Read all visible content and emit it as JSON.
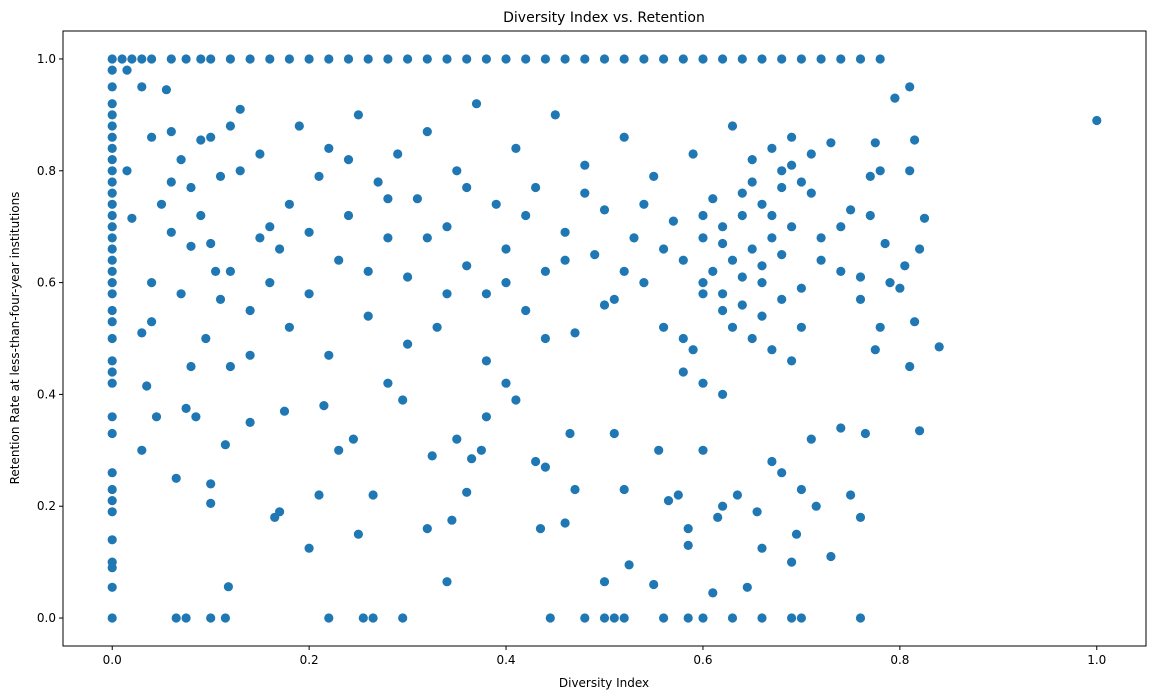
{
  "chart_data": {
    "type": "scatter",
    "title": "Diversity Index vs. Retention",
    "xlabel": "Diversity Index",
    "ylabel": "Retention Rate at less-than-four-year institutions",
    "xlim": [
      -0.05,
      1.05
    ],
    "ylim": [
      -0.05,
      1.05
    ],
    "xticks": [
      0.0,
      0.2,
      0.4,
      0.6,
      0.8,
      1.0
    ],
    "yticks": [
      0.0,
      0.2,
      0.4,
      0.6,
      0.8,
      1.0
    ],
    "xtick_labels": [
      "0.0",
      "0.2",
      "0.4",
      "0.6",
      "0.8",
      "1.0"
    ],
    "ytick_labels": [
      "0.0",
      "0.2",
      "0.4",
      "0.6",
      "0.8",
      "1.0"
    ],
    "grid": false,
    "marker_color": "#1f77b4",
    "points": [
      [
        0.0,
        1.0
      ],
      [
        0.0,
        0.98
      ],
      [
        0.0,
        0.95
      ],
      [
        0.0,
        0.92
      ],
      [
        0.0,
        0.9
      ],
      [
        0.0,
        0.88
      ],
      [
        0.0,
        0.86
      ],
      [
        0.0,
        0.84
      ],
      [
        0.0,
        0.82
      ],
      [
        0.0,
        0.8
      ],
      [
        0.0,
        0.78
      ],
      [
        0.0,
        0.76
      ],
      [
        0.0,
        0.74
      ],
      [
        0.0,
        0.72
      ],
      [
        0.0,
        0.7
      ],
      [
        0.0,
        0.68
      ],
      [
        0.0,
        0.66
      ],
      [
        0.0,
        0.64
      ],
      [
        0.0,
        0.62
      ],
      [
        0.0,
        0.6
      ],
      [
        0.0,
        0.58
      ],
      [
        0.0,
        0.55
      ],
      [
        0.0,
        0.53
      ],
      [
        0.0,
        0.5
      ],
      [
        0.0,
        0.46
      ],
      [
        0.0,
        0.44
      ],
      [
        0.0,
        0.42
      ],
      [
        0.0,
        0.36
      ],
      [
        0.0,
        0.33
      ],
      [
        0.0,
        0.26
      ],
      [
        0.0,
        0.23
      ],
      [
        0.0,
        0.21
      ],
      [
        0.0,
        0.19
      ],
      [
        0.0,
        0.14
      ],
      [
        0.0,
        0.1
      ],
      [
        0.0,
        0.09
      ],
      [
        0.0,
        0.055
      ],
      [
        0.0,
        0.0
      ],
      [
        0.01,
        1.0
      ],
      [
        0.02,
        1.0
      ],
      [
        0.03,
        1.0
      ],
      [
        0.04,
        1.0
      ],
      [
        0.06,
        1.0
      ],
      [
        0.075,
        1.0
      ],
      [
        0.09,
        1.0
      ],
      [
        0.1,
        1.0
      ],
      [
        0.12,
        1.0
      ],
      [
        0.14,
        1.0
      ],
      [
        0.16,
        1.0
      ],
      [
        0.18,
        1.0
      ],
      [
        0.2,
        1.0
      ],
      [
        0.22,
        1.0
      ],
      [
        0.24,
        1.0
      ],
      [
        0.26,
        1.0
      ],
      [
        0.28,
        1.0
      ],
      [
        0.3,
        1.0
      ],
      [
        0.32,
        1.0
      ],
      [
        0.34,
        1.0
      ],
      [
        0.36,
        1.0
      ],
      [
        0.38,
        1.0
      ],
      [
        0.4,
        1.0
      ],
      [
        0.42,
        1.0
      ],
      [
        0.44,
        1.0
      ],
      [
        0.46,
        1.0
      ],
      [
        0.48,
        1.0
      ],
      [
        0.5,
        1.0
      ],
      [
        0.52,
        1.0
      ],
      [
        0.54,
        1.0
      ],
      [
        0.56,
        1.0
      ],
      [
        0.58,
        1.0
      ],
      [
        0.6,
        1.0
      ],
      [
        0.62,
        1.0
      ],
      [
        0.64,
        1.0
      ],
      [
        0.66,
        1.0
      ],
      [
        0.68,
        1.0
      ],
      [
        0.7,
        1.0
      ],
      [
        0.72,
        1.0
      ],
      [
        0.74,
        1.0
      ],
      [
        0.76,
        1.0
      ],
      [
        0.78,
        1.0
      ],
      [
        0.065,
        0.0
      ],
      [
        0.075,
        0.0
      ],
      [
        0.1,
        0.0
      ],
      [
        0.115,
        0.0
      ],
      [
        0.22,
        0.0
      ],
      [
        0.255,
        0.0
      ],
      [
        0.265,
        0.0
      ],
      [
        0.295,
        0.0
      ],
      [
        0.445,
        0.0
      ],
      [
        0.48,
        0.0
      ],
      [
        0.5,
        0.0
      ],
      [
        0.51,
        0.0
      ],
      [
        0.52,
        0.0
      ],
      [
        0.56,
        0.0
      ],
      [
        0.585,
        0.0
      ],
      [
        0.6,
        0.0
      ],
      [
        0.63,
        0.0
      ],
      [
        0.66,
        0.0
      ],
      [
        0.69,
        0.0
      ],
      [
        0.7,
        0.0
      ],
      [
        0.76,
        0.0
      ],
      [
        1.0,
        0.89
      ],
      [
        0.84,
        0.485
      ],
      [
        0.82,
        0.335
      ],
      [
        0.825,
        0.715
      ],
      [
        0.815,
        0.855
      ],
      [
        0.81,
        0.95
      ],
      [
        0.81,
        0.8
      ],
      [
        0.805,
        0.63
      ],
      [
        0.815,
        0.53
      ],
      [
        0.81,
        0.45
      ],
      [
        0.8,
        0.59
      ],
      [
        0.795,
        0.93
      ],
      [
        0.82,
        0.66
      ],
      [
        0.015,
        0.98
      ],
      [
        0.015,
        0.8
      ],
      [
        0.02,
        0.715
      ],
      [
        0.03,
        0.51
      ],
      [
        0.035,
        0.415
      ],
      [
        0.03,
        0.3
      ],
      [
        0.04,
        0.6
      ],
      [
        0.045,
        0.36
      ],
      [
        0.055,
        0.945
      ],
      [
        0.06,
        0.87
      ],
      [
        0.065,
        0.25
      ],
      [
        0.07,
        0.58
      ],
      [
        0.075,
        0.375
      ],
      [
        0.08,
        0.665
      ],
      [
        0.085,
        0.36
      ],
      [
        0.09,
        0.855
      ],
      [
        0.095,
        0.5
      ],
      [
        0.1,
        0.24
      ],
      [
        0.1,
        0.205
      ],
      [
        0.105,
        0.62
      ],
      [
        0.11,
        0.57
      ],
      [
        0.115,
        0.31
      ],
      [
        0.118,
        0.056
      ],
      [
        0.12,
        0.45
      ],
      [
        0.13,
        0.8
      ],
      [
        0.14,
        0.35
      ],
      [
        0.15,
        0.68
      ],
      [
        0.165,
        0.18
      ],
      [
        0.17,
        0.19
      ],
      [
        0.175,
        0.37
      ],
      [
        0.2,
        0.125
      ],
      [
        0.21,
        0.22
      ],
      [
        0.215,
        0.38
      ],
      [
        0.23,
        0.3
      ],
      [
        0.245,
        0.32
      ],
      [
        0.25,
        0.15
      ],
      [
        0.265,
        0.22
      ],
      [
        0.28,
        0.42
      ],
      [
        0.295,
        0.39
      ],
      [
        0.32,
        0.16
      ],
      [
        0.325,
        0.29
      ],
      [
        0.34,
        0.065
      ],
      [
        0.345,
        0.175
      ],
      [
        0.35,
        0.32
      ],
      [
        0.36,
        0.225
      ],
      [
        0.365,
        0.285
      ],
      [
        0.375,
        0.3
      ],
      [
        0.38,
        0.36
      ],
      [
        0.4,
        0.42
      ],
      [
        0.41,
        0.39
      ],
      [
        0.43,
        0.28
      ],
      [
        0.435,
        0.16
      ],
      [
        0.44,
        0.27
      ],
      [
        0.46,
        0.17
      ],
      [
        0.465,
        0.33
      ],
      [
        0.47,
        0.23
      ],
      [
        0.5,
        0.065
      ],
      [
        0.51,
        0.33
      ],
      [
        0.52,
        0.23
      ],
      [
        0.525,
        0.095
      ],
      [
        0.55,
        0.06
      ],
      [
        0.555,
        0.3
      ],
      [
        0.565,
        0.21
      ],
      [
        0.575,
        0.22
      ],
      [
        0.585,
        0.16
      ],
      [
        0.585,
        0.13
      ],
      [
        0.6,
        0.3
      ],
      [
        0.61,
        0.045
      ],
      [
        0.615,
        0.18
      ],
      [
        0.62,
        0.2
      ],
      [
        0.635,
        0.22
      ],
      [
        0.645,
        0.055
      ],
      [
        0.655,
        0.19
      ],
      [
        0.66,
        0.125
      ],
      [
        0.67,
        0.28
      ],
      [
        0.68,
        0.26
      ],
      [
        0.69,
        0.1
      ],
      [
        0.695,
        0.15
      ],
      [
        0.7,
        0.23
      ],
      [
        0.71,
        0.32
      ],
      [
        0.715,
        0.2
      ],
      [
        0.73,
        0.11
      ],
      [
        0.74,
        0.34
      ],
      [
        0.75,
        0.22
      ],
      [
        0.76,
        0.18
      ],
      [
        0.765,
        0.33
      ],
      [
        0.77,
        0.72
      ],
      [
        0.775,
        0.48
      ],
      [
        0.78,
        0.52
      ],
      [
        0.785,
        0.67
      ],
      [
        0.79,
        0.6
      ],
      [
        0.78,
        0.8
      ],
      [
        0.775,
        0.85
      ],
      [
        0.03,
        0.95
      ],
      [
        0.04,
        0.86
      ],
      [
        0.05,
        0.74
      ],
      [
        0.06,
        0.69
      ],
      [
        0.07,
        0.82
      ],
      [
        0.08,
        0.77
      ],
      [
        0.09,
        0.72
      ],
      [
        0.1,
        0.86
      ],
      [
        0.11,
        0.79
      ],
      [
        0.12,
        0.62
      ],
      [
        0.13,
        0.91
      ],
      [
        0.14,
        0.55
      ],
      [
        0.15,
        0.83
      ],
      [
        0.16,
        0.7
      ],
      [
        0.17,
        0.66
      ],
      [
        0.18,
        0.74
      ],
      [
        0.19,
        0.88
      ],
      [
        0.2,
        0.58
      ],
      [
        0.21,
        0.79
      ],
      [
        0.22,
        0.84
      ],
      [
        0.23,
        0.64
      ],
      [
        0.24,
        0.72
      ],
      [
        0.25,
        0.9
      ],
      [
        0.26,
        0.54
      ],
      [
        0.27,
        0.78
      ],
      [
        0.28,
        0.68
      ],
      [
        0.29,
        0.83
      ],
      [
        0.3,
        0.61
      ],
      [
        0.31,
        0.75
      ],
      [
        0.32,
        0.87
      ],
      [
        0.33,
        0.52
      ],
      [
        0.34,
        0.7
      ],
      [
        0.35,
        0.8
      ],
      [
        0.36,
        0.63
      ],
      [
        0.37,
        0.92
      ],
      [
        0.38,
        0.58
      ],
      [
        0.39,
        0.74
      ],
      [
        0.4,
        0.66
      ],
      [
        0.41,
        0.84
      ],
      [
        0.42,
        0.55
      ],
      [
        0.43,
        0.77
      ],
      [
        0.44,
        0.62
      ],
      [
        0.45,
        0.9
      ],
      [
        0.46,
        0.69
      ],
      [
        0.47,
        0.51
      ],
      [
        0.48,
        0.81
      ],
      [
        0.49,
        0.65
      ],
      [
        0.5,
        0.73
      ],
      [
        0.51,
        0.57
      ],
      [
        0.52,
        0.86
      ],
      [
        0.53,
        0.68
      ],
      [
        0.54,
        0.6
      ],
      [
        0.55,
        0.79
      ],
      [
        0.56,
        0.52
      ],
      [
        0.57,
        0.71
      ],
      [
        0.58,
        0.64
      ],
      [
        0.59,
        0.83
      ],
      [
        0.6,
        0.58
      ],
      [
        0.61,
        0.75
      ],
      [
        0.62,
        0.67
      ],
      [
        0.63,
        0.88
      ],
      [
        0.64,
        0.61
      ],
      [
        0.65,
        0.78
      ],
      [
        0.66,
        0.54
      ],
      [
        0.67,
        0.72
      ],
      [
        0.68,
        0.65
      ],
      [
        0.69,
        0.81
      ],
      [
        0.7,
        0.59
      ],
      [
        0.71,
        0.76
      ],
      [
        0.72,
        0.68
      ],
      [
        0.73,
        0.85
      ],
      [
        0.74,
        0.62
      ],
      [
        0.75,
        0.73
      ],
      [
        0.76,
        0.57
      ],
      [
        0.77,
        0.79
      ],
      [
        0.04,
        0.53
      ],
      [
        0.06,
        0.78
      ],
      [
        0.08,
        0.45
      ],
      [
        0.1,
        0.67
      ],
      [
        0.12,
        0.88
      ],
      [
        0.14,
        0.47
      ],
      [
        0.16,
        0.6
      ],
      [
        0.18,
        0.52
      ],
      [
        0.2,
        0.69
      ],
      [
        0.22,
        0.47
      ],
      [
        0.24,
        0.82
      ],
      [
        0.26,
        0.62
      ],
      [
        0.28,
        0.75
      ],
      [
        0.3,
        0.49
      ],
      [
        0.32,
        0.68
      ],
      [
        0.34,
        0.58
      ],
      [
        0.36,
        0.77
      ],
      [
        0.38,
        0.46
      ],
      [
        0.4,
        0.6
      ],
      [
        0.42,
        0.72
      ],
      [
        0.44,
        0.5
      ],
      [
        0.46,
        0.64
      ],
      [
        0.48,
        0.76
      ],
      [
        0.5,
        0.56
      ],
      [
        0.52,
        0.62
      ],
      [
        0.54,
        0.74
      ],
      [
        0.56,
        0.66
      ],
      [
        0.58,
        0.5
      ],
      [
        0.6,
        0.68
      ],
      [
        0.62,
        0.55
      ],
      [
        0.64,
        0.72
      ],
      [
        0.66,
        0.63
      ],
      [
        0.68,
        0.77
      ],
      [
        0.7,
        0.52
      ],
      [
        0.72,
        0.64
      ],
      [
        0.74,
        0.7
      ],
      [
        0.76,
        0.61
      ],
      [
        0.6,
        0.6
      ],
      [
        0.61,
        0.62
      ],
      [
        0.62,
        0.58
      ],
      [
        0.63,
        0.64
      ],
      [
        0.64,
        0.56
      ],
      [
        0.65,
        0.66
      ],
      [
        0.66,
        0.6
      ],
      [
        0.67,
        0.68
      ],
      [
        0.68,
        0.57
      ],
      [
        0.69,
        0.7
      ],
      [
        0.6,
        0.72
      ],
      [
        0.62,
        0.7
      ],
      [
        0.64,
        0.76
      ],
      [
        0.66,
        0.74
      ],
      [
        0.68,
        0.8
      ],
      [
        0.7,
        0.78
      ],
      [
        0.63,
        0.52
      ],
      [
        0.65,
        0.5
      ],
      [
        0.67,
        0.48
      ],
      [
        0.69,
        0.46
      ],
      [
        0.59,
        0.48
      ],
      [
        0.58,
        0.44
      ],
      [
        0.6,
        0.42
      ],
      [
        0.62,
        0.4
      ],
      [
        0.65,
        0.82
      ],
      [
        0.67,
        0.84
      ],
      [
        0.69,
        0.86
      ],
      [
        0.71,
        0.83
      ]
    ]
  }
}
